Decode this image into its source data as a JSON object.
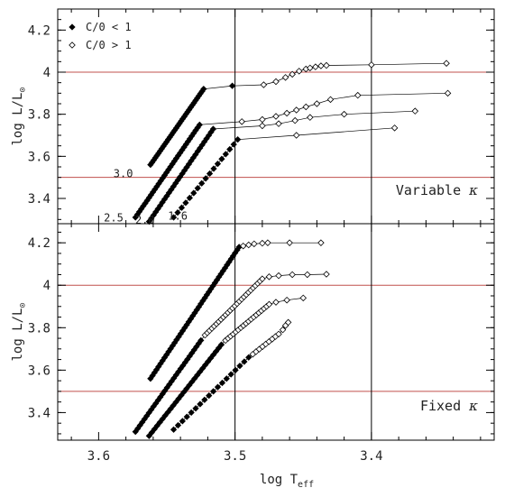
{
  "chart_data": {
    "type": "scatter",
    "xlabel": "log T",
    "xlabel_sub": "eff",
    "ylabel": "log L/L",
    "ylabel_symbol": "⊙",
    "xlim": [
      3.63,
      3.31
    ],
    "x_reversed": true,
    "x_ticks": [
      "3.6",
      "3.5",
      "3.4"
    ],
    "x_tick_values": [
      3.6,
      3.5,
      3.4
    ],
    "legend": [
      {
        "marker": "filled-diamond",
        "label": "C/0 < 1"
      },
      {
        "marker": "open-diamond",
        "label": "C/0 > 1"
      }
    ],
    "reference_lines": {
      "horizontal": [
        3.5,
        4.0
      ],
      "horizontal_color": "#c0504d",
      "vertical": [
        3.5,
        3.4
      ]
    },
    "panels": [
      {
        "label": "Variable κ",
        "label_text": "Variable",
        "label_symbol": "κ",
        "ylim": [
          3.28,
          4.3
        ],
        "y_ticks": [
          "3.4",
          "3.6",
          "3.8",
          "4",
          "4.2"
        ],
        "y_tick_values": [
          3.4,
          3.6,
          3.8,
          4.0,
          4.2
        ],
        "series": [
          {
            "name": "3.0",
            "label_text": "3.0",
            "filled": {
              "x_start": 3.562,
              "y_start": 3.56,
              "x_end": 3.523,
              "y_end": 3.92,
              "n": 34
            },
            "filled_extra": [
              [
                3.502,
                3.935
              ]
            ],
            "open": [
              [
                3.479,
                3.94
              ],
              [
                3.47,
                3.955
              ],
              [
                3.463,
                3.975
              ],
              [
                3.458,
                3.99
              ],
              [
                3.453,
                4.005
              ],
              [
                3.448,
                4.015
              ],
              [
                3.445,
                4.02
              ],
              [
                3.441,
                4.025
              ],
              [
                3.437,
                4.03
              ],
              [
                3.433,
                4.032
              ],
              [
                3.4,
                4.035
              ],
              [
                3.345,
                4.042
              ]
            ]
          },
          {
            "name": "2.5",
            "label_text": "2.5",
            "filled": {
              "x_start": 3.573,
              "y_start": 3.31,
              "x_end": 3.526,
              "y_end": 3.75,
              "n": 34
            },
            "open": [
              [
                3.495,
                3.765
              ],
              [
                3.48,
                3.775
              ],
              [
                3.47,
                3.79
              ],
              [
                3.462,
                3.805
              ],
              [
                3.455,
                3.82
              ],
              [
                3.448,
                3.835
              ],
              [
                3.44,
                3.85
              ],
              [
                3.43,
                3.87
              ],
              [
                3.41,
                3.89
              ],
              [
                3.344,
                3.9
              ]
            ]
          },
          {
            "name": "2.0",
            "label_text": "2.0",
            "filled": {
              "x_start": 3.563,
              "y_start": 3.29,
              "x_end": 3.516,
              "y_end": 3.73,
              "n": 30
            },
            "open": [
              [
                3.48,
                3.745
              ],
              [
                3.468,
                3.755
              ],
              [
                3.456,
                3.77
              ],
              [
                3.445,
                3.785
              ],
              [
                3.42,
                3.8
              ],
              [
                3.368,
                3.815
              ]
            ]
          },
          {
            "name": "1.6",
            "label_text": "1.6",
            "filled": {
              "x_start": 3.545,
              "y_start": 3.31,
              "x_end": 3.498,
              "y_end": 3.68,
              "n": 17
            },
            "open": [
              [
                3.455,
                3.7
              ],
              [
                3.383,
                3.735
              ]
            ]
          }
        ],
        "label_positions": {
          "3.0": [
            3.582,
            3.5
          ],
          "2.5": [
            3.589,
            3.29
          ],
          "2.0": [
            3.566,
            3.28
          ],
          "1.6": [
            3.542,
            3.3
          ]
        }
      },
      {
        "label": "Fixed κ",
        "label_text": "Fixed",
        "label_symbol": "κ",
        "ylim": [
          3.27,
          4.29
        ],
        "y_ticks": [
          "3.4",
          "3.6",
          "3.8",
          "4",
          "4.2"
        ],
        "y_tick_values": [
          3.4,
          3.6,
          3.8,
          4.0,
          4.2
        ],
        "series": [
          {
            "name": "3.0",
            "filled": {
              "x_start": 3.562,
              "y_start": 3.56,
              "x_end": 3.497,
              "y_end": 4.18,
              "n": 45
            },
            "open": [
              [
                3.494,
                4.185
              ],
              [
                3.49,
                4.19
              ],
              [
                3.486,
                4.195
              ],
              [
                3.48,
                4.198
              ],
              [
                3.476,
                4.2
              ],
              [
                3.46,
                4.2
              ],
              [
                3.437,
                4.2
              ]
            ]
          },
          {
            "name": "2.5",
            "filled": {
              "x_start": 3.573,
              "y_start": 3.31,
              "x_end": 3.525,
              "y_end": 3.74,
              "n": 30
            },
            "open_line": {
              "x_start": 3.522,
              "y_start": 3.765,
              "x_end": 3.48,
              "y_end": 4.03,
              "n": 26
            },
            "open": [
              [
                3.475,
                4.04
              ],
              [
                3.468,
                4.045
              ],
              [
                3.458,
                4.05
              ],
              [
                3.447,
                4.05
              ],
              [
                3.433,
                4.052
              ]
            ]
          },
          {
            "name": "2.0",
            "filled": {
              "x_start": 3.563,
              "y_start": 3.29,
              "x_end": 3.51,
              "y_end": 3.72,
              "n": 28
            },
            "open_line": {
              "x_start": 3.507,
              "y_start": 3.74,
              "x_end": 3.475,
              "y_end": 3.91,
              "n": 18
            },
            "open": [
              [
                3.47,
                3.92
              ],
              [
                3.462,
                3.93
              ],
              [
                3.45,
                3.94
              ]
            ]
          },
          {
            "name": "1.6",
            "filled": {
              "x_start": 3.545,
              "y_start": 3.32,
              "x_end": 3.49,
              "y_end": 3.66,
              "n": 18
            },
            "open_line": {
              "x_start": 3.487,
              "y_start": 3.675,
              "x_end": 3.468,
              "y_end": 3.77,
              "n": 9
            },
            "open": [
              [
                3.465,
                3.79
              ],
              [
                3.463,
                3.81
              ],
              [
                3.461,
                3.825
              ]
            ]
          }
        ]
      }
    ]
  }
}
